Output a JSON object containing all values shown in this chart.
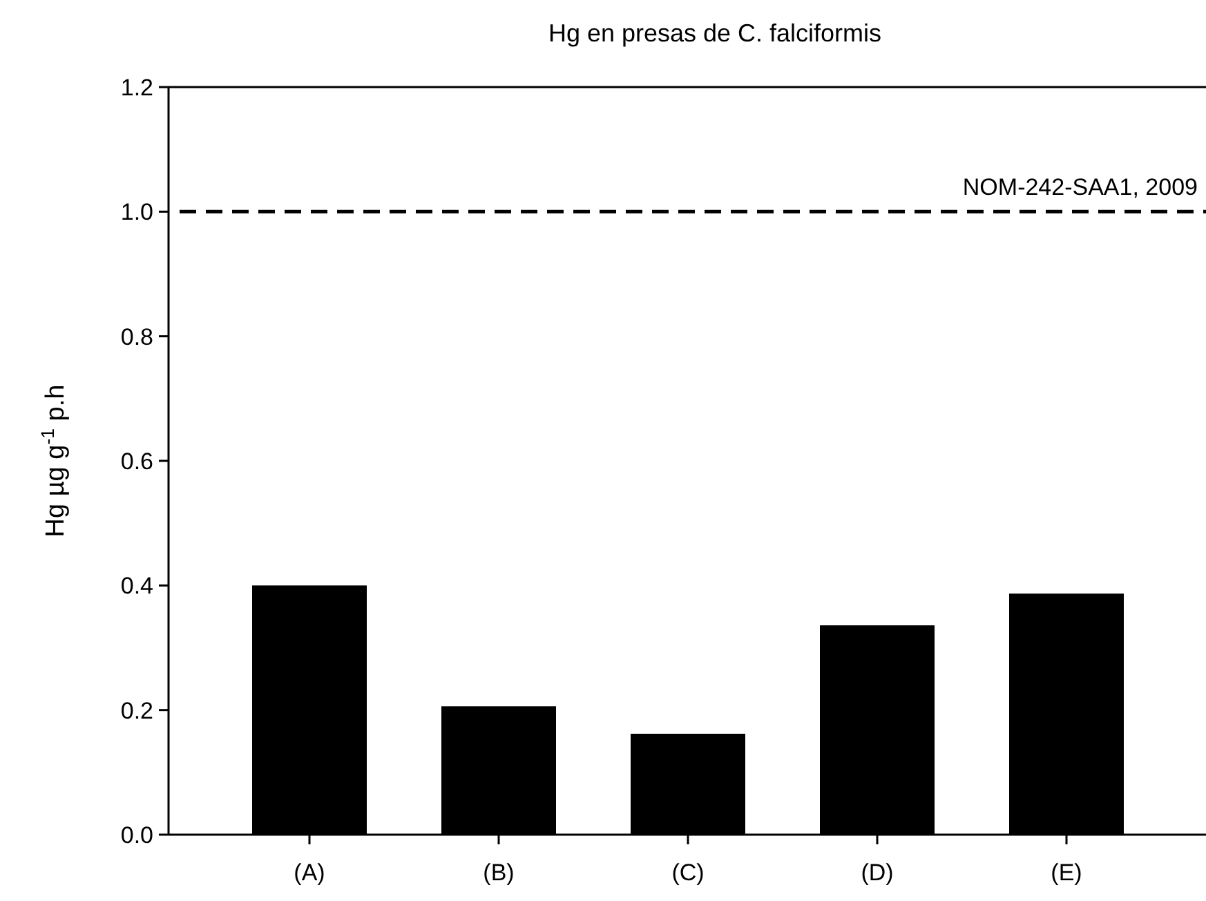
{
  "chart_data": {
    "type": "bar",
    "title": "Hg en presas de C. falciformis",
    "ylabel": "Hg µg g$^{-1}$ p.h",
    "categories": [
      "(A)",
      "(B)",
      "(C)",
      "(D)",
      "(E)"
    ],
    "values": [
      0.4,
      0.206,
      0.162,
      0.336,
      0.387
    ],
    "color": "#000000",
    "ylim": [
      0,
      1.2
    ],
    "yticks": [
      {
        "value": 0,
        "label": "0.0"
      },
      {
        "value": 0.2,
        "label": "0.2"
      },
      {
        "value": 0.4,
        "label": "0.4"
      },
      {
        "value": 0.6,
        "label": "0.6"
      },
      {
        "value": 0.8,
        "label": "0.8"
      },
      {
        "value": 1,
        "label": "1.0"
      },
      {
        "value": 1.2,
        "label": "1.2"
      }
    ],
    "ref_lines": [
      {
        "axis": "y",
        "value": 1,
        "label": "NOM-242-SAA1, 2009",
        "color": "#000000",
        "line_style": "dashed"
      }
    ],
    "grid": false
  }
}
